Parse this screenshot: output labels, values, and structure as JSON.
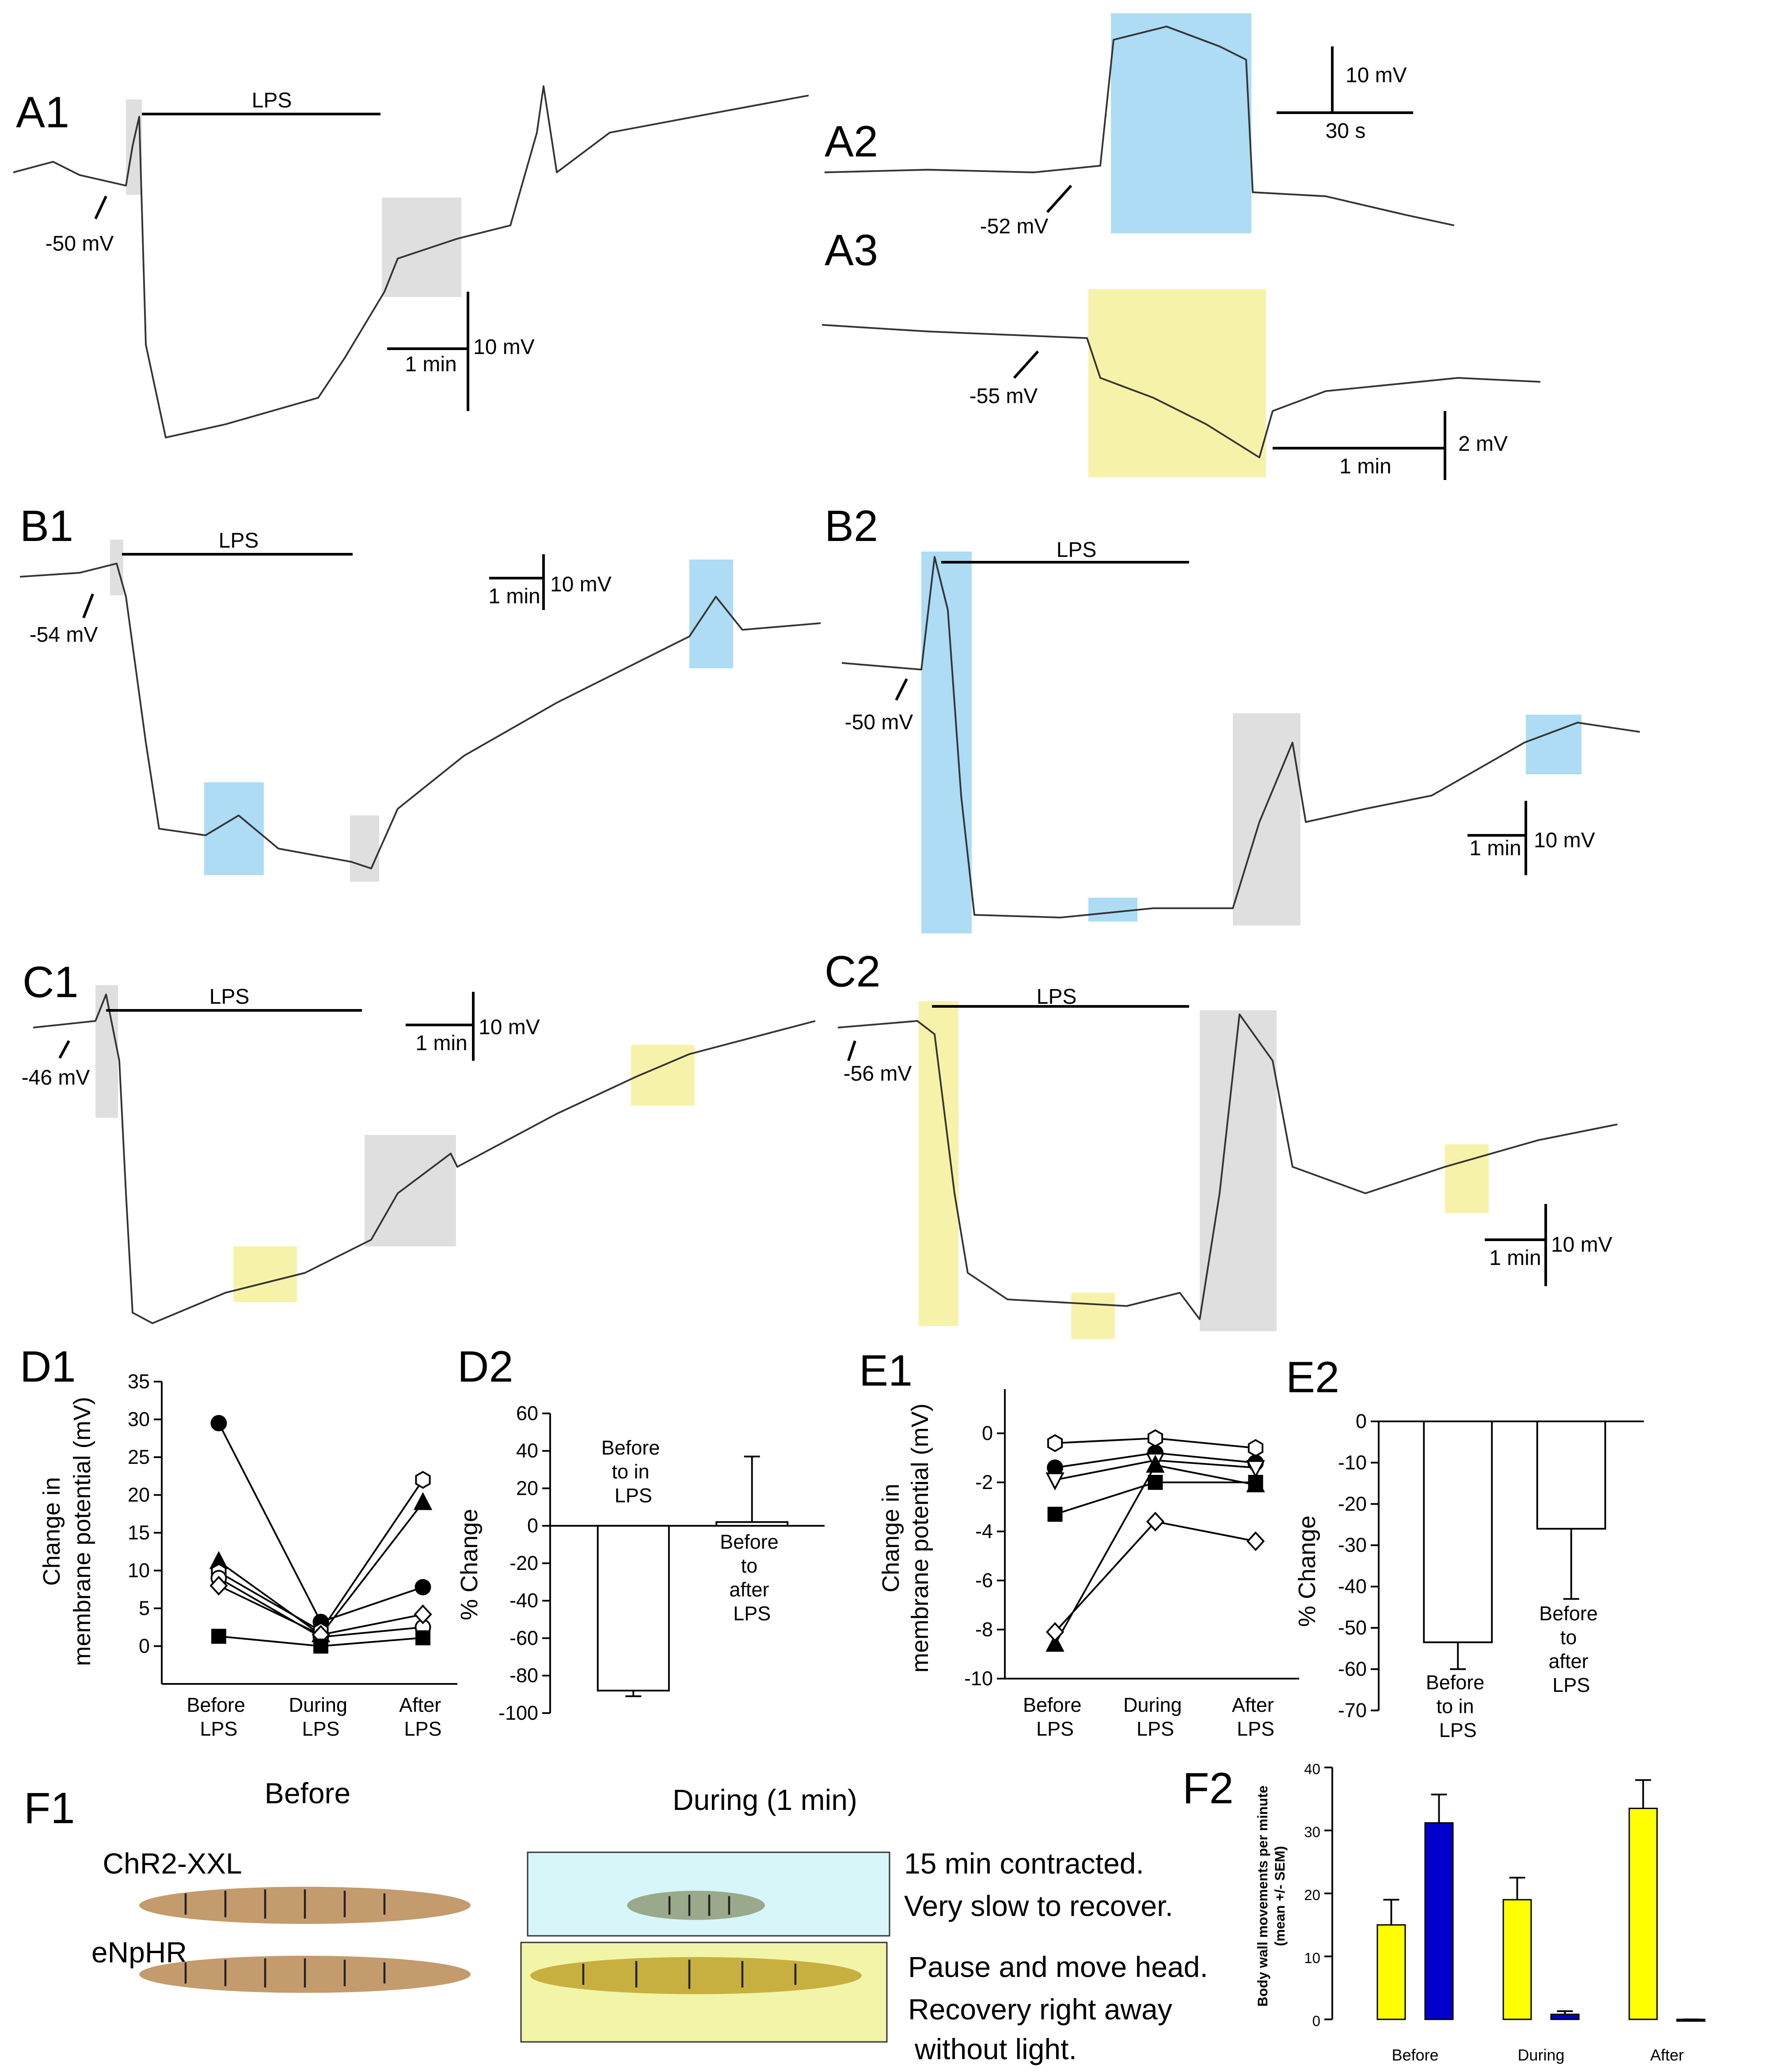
{
  "panels": {
    "A1": {
      "label": "A1",
      "stim": "LPS",
      "rest": "-50 mV",
      "time": "1 min",
      "volt": "10 mV"
    },
    "A2": {
      "label": "A2",
      "rest": "-52 mV",
      "time": "30 s",
      "volt": "10 mV"
    },
    "A3": {
      "label": "A3",
      "rest": "-55 mV",
      "time": "1 min",
      "volt": "2 mV"
    },
    "B1": {
      "label": "B1",
      "stim": "LPS",
      "rest": "-54 mV",
      "time": "1 min",
      "volt": "10 mV"
    },
    "B2": {
      "label": "B2",
      "stim": "LPS",
      "rest": "-50 mV",
      "time": "1 min",
      "volt": "10 mV"
    },
    "C1": {
      "label": "C1",
      "stim": "LPS",
      "rest": "-46 mV",
      "time": "1 min",
      "volt": "10 mV"
    },
    "C2": {
      "label": "C2",
      "stim": "LPS",
      "rest": "-56 mV",
      "time": "1 min",
      "volt": "10 mV"
    },
    "D1": {
      "label": "D1"
    },
    "D2": {
      "label": "D2"
    },
    "E1": {
      "label": "E1"
    },
    "E2": {
      "label": "E2"
    },
    "F2": {
      "label": "F2"
    },
    "F1": {
      "label": "F1",
      "before": "Before",
      "during": "During (1 min)",
      "line1": "ChR2-XXL",
      "line2": "eNpHR",
      "notes1": [
        "15 min contracted.",
        "Very slow to recover."
      ],
      "notes2": [
        "Pause and move head.",
        "Recovery right away",
        "without light."
      ]
    }
  },
  "chart_data": [
    {
      "type": "line",
      "ylabel": [
        "Change in",
        "membrane potential (mV)"
      ],
      "categories": [
        "Before LPS",
        "During LPS",
        "After LPS"
      ],
      "ylim": [
        -5,
        35
      ],
      "yticks": [
        0,
        5,
        10,
        15,
        20,
        25,
        30,
        35
      ],
      "series": [
        {
          "marker": "circle",
          "color": "#000",
          "fill": "#000",
          "values": [
            29.5,
            3.2,
            7.8
          ]
        },
        {
          "marker": "triangle",
          "color": "#000",
          "fill": "#000",
          "values": [
            11.2,
            1.5,
            19
          ]
        },
        {
          "marker": "hexagon",
          "color": "#000",
          "fill": "#fff",
          "values": [
            9.8,
            2,
            22
          ]
        },
        {
          "marker": "circle",
          "color": "#000",
          "fill": "#fff",
          "values": [
            9,
            1.2,
            2.5
          ]
        },
        {
          "marker": "diamond",
          "color": "#000",
          "fill": "#fff",
          "values": [
            8,
            1.5,
            4.2
          ]
        },
        {
          "marker": "square",
          "color": "#000",
          "fill": "#000",
          "values": [
            1.3,
            0,
            1.1
          ]
        }
      ]
    },
    {
      "type": "bar",
      "ylabel": "% Change",
      "categories": [
        "Before to in LPS",
        "Before to after LPS"
      ],
      "values": [
        -88,
        2
      ],
      "errors": [
        3,
        35
      ],
      "color": "#fff",
      "ylim": [
        -100,
        60
      ],
      "yticks": [
        -100,
        -80,
        -60,
        -40,
        -20,
        0,
        20,
        40,
        60
      ]
    },
    {
      "type": "line",
      "ylabel": [
        "Change in",
        "membrane potential (mV)"
      ],
      "categories": [
        "Before LPS",
        "During LPS",
        "After LPS"
      ],
      "ylim": [
        -10,
        1.8
      ],
      "yticks": [
        -10,
        -8,
        -6,
        -4,
        -2,
        0
      ],
      "series": [
        {
          "marker": "hexagon",
          "color": "#000",
          "fill": "#fff",
          "values": [
            -0.4,
            -0.2,
            -0.6
          ]
        },
        {
          "marker": "circle",
          "color": "#000",
          "fill": "#000",
          "values": [
            -1.4,
            -0.8,
            -1.2
          ]
        },
        {
          "marker": "triangle-down",
          "color": "#000",
          "fill": "#fff",
          "values": [
            -1.9,
            -1.1,
            -1.4
          ]
        },
        {
          "marker": "triangle",
          "color": "#000",
          "fill": "#000",
          "values": [
            -8.6,
            -1.3,
            -2.1
          ]
        },
        {
          "marker": "square",
          "color": "#000",
          "fill": "#000",
          "values": [
            -3.3,
            -2.0,
            -2.0
          ]
        },
        {
          "marker": "diamond",
          "color": "#000",
          "fill": "#fff",
          "values": [
            -8.1,
            -3.6,
            -4.4
          ]
        }
      ]
    },
    {
      "type": "bar",
      "ylabel": "% Change",
      "categories": [
        "Before to in LPS",
        "Before to after LPS"
      ],
      "values": [
        -53.5,
        -26
      ],
      "errors": [
        6.5,
        17
      ],
      "color": "#fff",
      "ylim": [
        -70,
        0
      ],
      "yticks": [
        -70,
        -60,
        -50,
        -40,
        -30,
        -20,
        -10,
        0
      ]
    },
    {
      "type": "grouped_bar",
      "ylabel": [
        "Body wall movements per minute",
        "(mean +/- SEM)"
      ],
      "categories": [
        "Before",
        "During",
        "After"
      ],
      "ylim": [
        0,
        40
      ],
      "yticks": [
        0,
        10,
        20,
        30,
        40
      ],
      "series": [
        {
          "color": "#ffff00",
          "values": [
            15,
            19,
            33.5
          ],
          "errors": [
            4,
            3.5,
            4.5
          ]
        },
        {
          "color": "#0000cc",
          "values": [
            31.2,
            0.8,
            0
          ],
          "errors": [
            4.5,
            0.5,
            0
          ]
        }
      ]
    }
  ]
}
